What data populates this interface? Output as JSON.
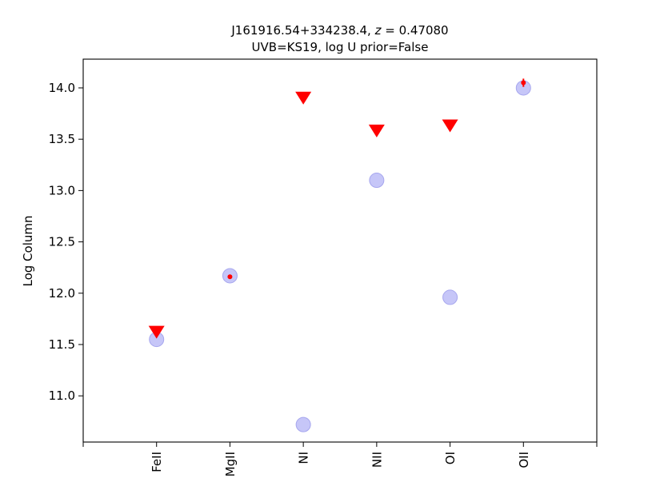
{
  "chart_data": {
    "type": "scatter",
    "title_line1_prefix": "J161916.54+334238.4, ",
    "title_line1_var": "z",
    "title_line1_suffix": " = 0.47080",
    "title_line2": "UVB=KS19, log U prior=False",
    "xlabel": "",
    "ylabel": "Log Column",
    "categories": [
      "FeII",
      "MgII",
      "NI",
      "NII",
      "OI",
      "OII"
    ],
    "x_range": [
      -1,
      6
    ],
    "ylim": [
      10.55,
      14.28
    ],
    "y_ticks": [
      11.0,
      11.5,
      12.0,
      12.5,
      13.0,
      13.5,
      14.0
    ],
    "grid": false,
    "series": [
      {
        "marker": "circle",
        "color": "#b3b3f5",
        "values": [
          11.55,
          12.17,
          10.72,
          13.1,
          11.96,
          14.0
        ]
      },
      {
        "marker": "triangle-down",
        "color": "#ff0000",
        "points": [
          {
            "category": "FeII",
            "value": 11.62
          },
          {
            "category": "NI",
            "value": 13.9
          },
          {
            "category": "NII",
            "value": 13.58
          },
          {
            "category": "OI",
            "value": 13.63
          }
        ]
      },
      {
        "marker": "dot",
        "color": "#ff0000",
        "points": [
          {
            "category": "MgII",
            "value": 12.16,
            "err": 0.0
          },
          {
            "category": "OII",
            "value": 14.05,
            "err": 0.04
          }
        ]
      }
    ]
  }
}
